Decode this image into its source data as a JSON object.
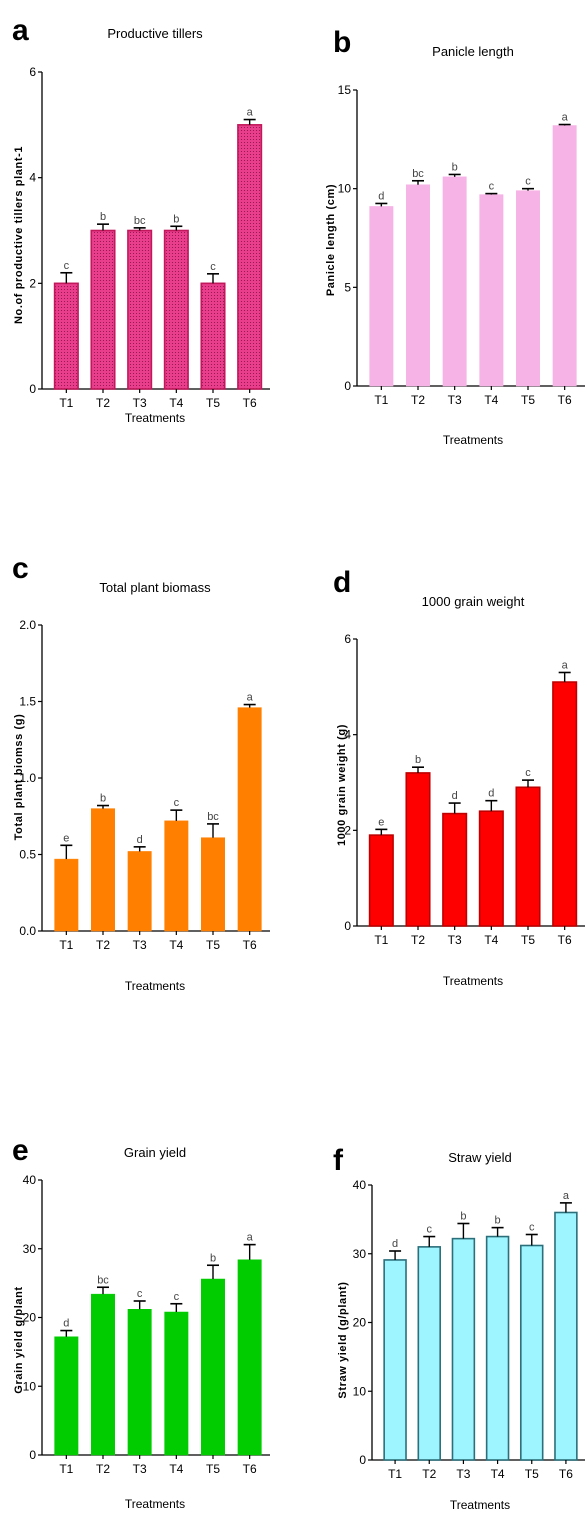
{
  "chart_data": [
    {
      "type": "bar",
      "panel": "a",
      "title": "Productive tillers",
      "xlabel": "Treatments",
      "ylabel": "No.of productive tillers plant-1",
      "categories": [
        "T1",
        "T2",
        "T3",
        "T4",
        "T5",
        "T6"
      ],
      "values": [
        2.0,
        3.0,
        3.0,
        3.0,
        2.0,
        5.0
      ],
      "errors": [
        0.2,
        0.12,
        0.05,
        0.08,
        0.18,
        0.1
      ],
      "letters": [
        "c",
        "b",
        "bc",
        "b",
        "c",
        "a"
      ],
      "ylim": [
        0,
        6
      ],
      "yticks": [
        "0",
        "2",
        "4",
        "6"
      ],
      "color": "#e83e8c",
      "edge": "#c2185b",
      "pattern": "dots"
    },
    {
      "type": "bar",
      "panel": "b",
      "title": "Panicle length",
      "xlabel": "Treatments",
      "ylabel": "Panicle length (cm)",
      "categories": [
        "T1",
        "T2",
        "T3",
        "T4",
        "T5",
        "T6"
      ],
      "values": [
        9.1,
        10.2,
        10.6,
        9.7,
        9.9,
        13.2
      ],
      "errors": [
        0.15,
        0.2,
        0.12,
        0.05,
        0.1,
        0.05
      ],
      "letters": [
        "d",
        "bc",
        "b",
        "c",
        "c",
        "a"
      ],
      "ylim": [
        0,
        15
      ],
      "yticks": [
        "0",
        "5",
        "10",
        "15"
      ],
      "color": "#f6b3e6",
      "edge": "#f6b3e6"
    },
    {
      "type": "bar",
      "panel": "c",
      "title": "Total plant biomass",
      "xlabel": "Treatments",
      "ylabel": "Total plant biomss (g)",
      "categories": [
        "T1",
        "T2",
        "T3",
        "T4",
        "T5",
        "T6"
      ],
      "values": [
        0.47,
        0.8,
        0.52,
        0.72,
        0.61,
        1.46
      ],
      "errors": [
        0.09,
        0.02,
        0.03,
        0.07,
        0.09,
        0.02
      ],
      "letters": [
        "e",
        "b",
        "d",
        "c",
        "bc",
        "a"
      ],
      "ylim": [
        0,
        2.0
      ],
      "yticks": [
        "0.0",
        "0.5",
        "1.0",
        "1.5",
        "2.0"
      ],
      "color": "#ff8000",
      "edge": "#ff8000"
    },
    {
      "type": "bar",
      "panel": "d",
      "title": "1000 grain weight",
      "xlabel": "Treatments",
      "ylabel": "1000 grain weight (g)",
      "categories": [
        "T1",
        "T2",
        "T3",
        "T4",
        "T5",
        "T6"
      ],
      "values": [
        1.9,
        3.2,
        2.35,
        2.4,
        2.9,
        5.1
      ],
      "errors": [
        0.12,
        0.12,
        0.22,
        0.22,
        0.15,
        0.2
      ],
      "letters": [
        "e",
        "b",
        "d",
        "d",
        "c",
        "a"
      ],
      "ylim": [
        0,
        6
      ],
      "yticks": [
        "0",
        "2",
        "4",
        "6"
      ],
      "color": "#ff0000",
      "edge": "#c00000"
    },
    {
      "type": "bar",
      "panel": "e",
      "title": "Grain yield",
      "xlabel": "Treatments",
      "ylabel": "Grain yield g/plant",
      "categories": [
        "T1",
        "T2",
        "T3",
        "T4",
        "T5",
        "T6"
      ],
      "values": [
        17.2,
        23.4,
        21.2,
        20.8,
        25.6,
        28.4
      ],
      "errors": [
        0.9,
        1.0,
        1.2,
        1.2,
        2.0,
        2.2
      ],
      "letters": [
        "d",
        "bc",
        "c",
        "c",
        "b",
        "a"
      ],
      "ylim": [
        0,
        40
      ],
      "yticks": [
        "0",
        "10",
        "20",
        "30",
        "40"
      ],
      "color": "#00cc00",
      "edge": "#00cc00"
    },
    {
      "type": "bar",
      "panel": "f",
      "title": "Straw yield",
      "xlabel": "Treatments",
      "ylabel": "Straw yield (g/plant)",
      "categories": [
        "T1",
        "T2",
        "T3",
        "T4",
        "T5",
        "T6"
      ],
      "values": [
        29.1,
        31.0,
        32.2,
        32.5,
        31.2,
        36.0
      ],
      "errors": [
        1.3,
        1.5,
        2.2,
        1.3,
        1.6,
        1.4
      ],
      "letters": [
        "d",
        "c",
        "b",
        "b",
        "c",
        "a"
      ],
      "ylim": [
        0,
        40
      ],
      "yticks": [
        "0",
        "10",
        "20",
        "30",
        "40"
      ],
      "color": "#9ef4ff",
      "edge": "#2b6f7a"
    }
  ]
}
